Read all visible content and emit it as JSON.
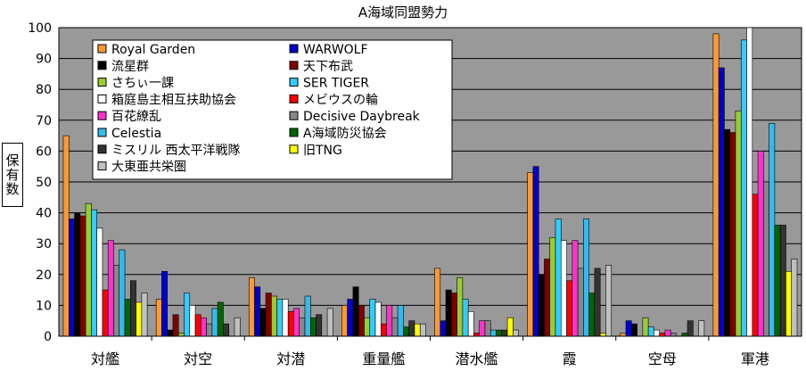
{
  "chart_data": {
    "type": "bar",
    "title": "A海域同盟勢力",
    "ylabel": "保有数",
    "xlabel": "",
    "ylim": [
      0,
      100
    ],
    "yticks": [
      0,
      10,
      20,
      30,
      40,
      50,
      60,
      70,
      80,
      90,
      100
    ],
    "grid": "horizontal",
    "plot_background": "#999999",
    "legend_position": "top-left inside plot, two columns",
    "categories": [
      "対艦",
      "対空",
      "対潜",
      "重量艦",
      "潜水艦",
      "霞",
      "空母",
      "軍港"
    ],
    "series": [
      {
        "name": "Royal Garden",
        "color": "#FF9933",
        "values": [
          65,
          12,
          19,
          10,
          22,
          53,
          1,
          98
        ]
      },
      {
        "name": "WARWOLF",
        "color": "#0000CC",
        "values": [
          38,
          21,
          16,
          12,
          5,
          55,
          5,
          87
        ]
      },
      {
        "name": "流星群",
        "color": "#000000",
        "values": [
          40,
          2,
          9,
          16,
          15,
          20,
          4,
          67
        ]
      },
      {
        "name": "天下布武",
        "color": "#800000",
        "values": [
          39,
          7,
          14,
          10,
          14,
          25,
          0,
          66
        ]
      },
      {
        "name": "さちぃ一課",
        "color": "#99CC33",
        "values": [
          43,
          1,
          13,
          6,
          19,
          32,
          6,
          73
        ]
      },
      {
        "name": "SER TIGER",
        "color": "#33CCFF",
        "values": [
          41,
          14,
          12,
          12,
          12,
          38,
          3,
          96
        ]
      },
      {
        "name": "箱庭島主相互扶助協会",
        "color": "#FFFFFF",
        "values": [
          35,
          10,
          12,
          11,
          8,
          31,
          2,
          100
        ]
      },
      {
        "name": "メビウスの輪",
        "color": "#FF0000",
        "values": [
          15,
          7,
          8,
          4,
          1,
          18,
          1,
          46
        ]
      },
      {
        "name": "百花繚乱",
        "color": "#FF33CC",
        "values": [
          31,
          6,
          9,
          10,
          5,
          31,
          2,
          60
        ]
      },
      {
        "name": "Decisive Daybreak",
        "color": "#888888",
        "values": [
          23,
          4,
          6,
          6,
          5,
          22,
          1,
          50
        ]
      },
      {
        "name": "Celestia",
        "color": "#33BBEE",
        "values": [
          28,
          9,
          13,
          10,
          2,
          38,
          0,
          69
        ]
      },
      {
        "name": "A海域防災協会",
        "color": "#006600",
        "values": [
          12,
          11,
          6,
          3,
          2,
          14,
          1,
          36
        ]
      },
      {
        "name": "ミスリル 西太平洋戦隊",
        "color": "#333333",
        "values": [
          18,
          4,
          7,
          5,
          2,
          22,
          5,
          36
        ]
      },
      {
        "name": "旧TNG",
        "color": "#FFFF00",
        "values": [
          11,
          0,
          0,
          4,
          6,
          1,
          0,
          21
        ]
      },
      {
        "name": "大東亜共栄圏",
        "color": "#C0C0C0",
        "values": [
          14,
          6,
          9,
          4,
          2,
          23,
          5,
          25
        ]
      }
    ]
  }
}
